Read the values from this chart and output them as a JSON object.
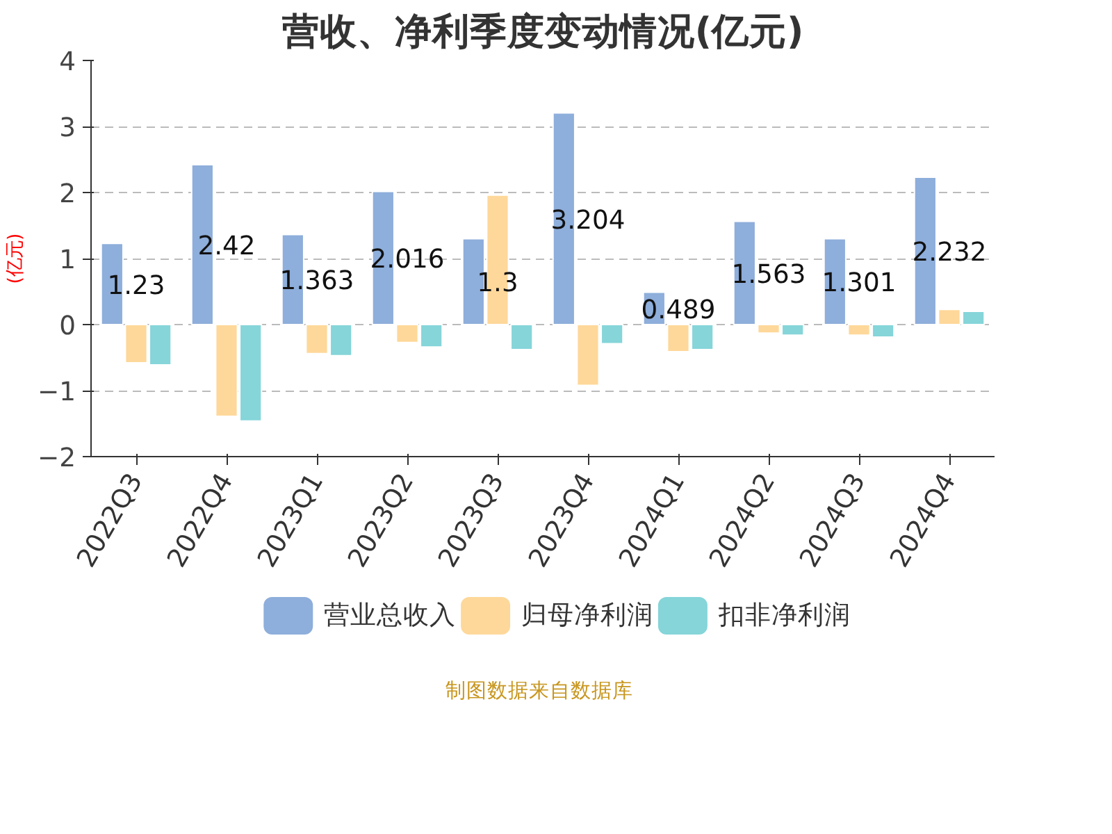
{
  "chart_data": {
    "type": "bar",
    "title": "营收、净利季度变动情况(亿元)",
    "ylabel": "(亿元)",
    "categories": [
      "2022Q3",
      "2022Q4",
      "2023Q1",
      "2023Q2",
      "2023Q3",
      "2023Q4",
      "2024Q1",
      "2024Q2",
      "2024Q3",
      "2024Q4"
    ],
    "series": [
      {
        "name": "营业总收入",
        "color": "#8eaedb",
        "values": [
          1.23,
          2.42,
          1.363,
          2.016,
          1.3,
          3.204,
          0.489,
          1.563,
          1.301,
          2.232
        ],
        "value_labels": [
          "1.23",
          "2.42",
          "1.363",
          "2.016",
          "1.3",
          "3.204",
          "0.489",
          "1.563",
          "1.301",
          "2.232"
        ]
      },
      {
        "name": "归母净利润",
        "color": "#fed89a",
        "values": [
          -0.58,
          -1.39,
          -0.44,
          -0.27,
          1.96,
          -0.92,
          -0.41,
          -0.13,
          -0.16,
          0.23
        ]
      },
      {
        "name": "扣非净利润",
        "color": "#85d5d9",
        "values": [
          -0.61,
          -1.46,
          -0.47,
          -0.34,
          -0.38,
          -0.29,
          -0.38,
          -0.16,
          -0.19,
          0.2
        ]
      }
    ],
    "ylim": [
      -2,
      4
    ],
    "yticks": [
      -2,
      -1,
      0,
      1,
      2,
      3,
      4
    ],
    "grid": "y",
    "legend": "bottom",
    "annotations": [
      "制图数据来自数据库"
    ]
  }
}
